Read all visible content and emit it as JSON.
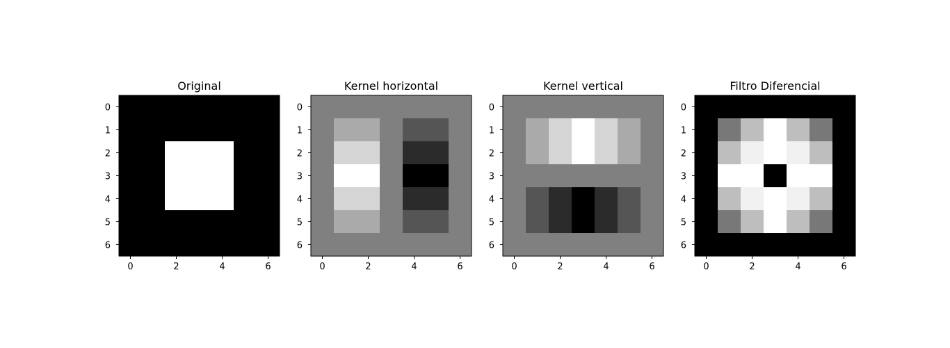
{
  "chart_data": [
    {
      "type": "heatmap",
      "title": "Original",
      "colormap": "gray",
      "x_ticks": [
        "0",
        "2",
        "4",
        "6"
      ],
      "y_ticks": [
        "0",
        "1",
        "2",
        "3",
        "4",
        "5",
        "6"
      ],
      "values": [
        [
          0,
          0,
          0,
          0,
          0,
          0,
          0
        ],
        [
          0,
          0,
          0,
          0,
          0,
          0,
          0
        ],
        [
          0,
          0,
          1,
          1,
          1,
          0,
          0
        ],
        [
          0,
          0,
          1,
          1,
          1,
          0,
          0
        ],
        [
          0,
          0,
          1,
          1,
          1,
          0,
          0
        ],
        [
          0,
          0,
          0,
          0,
          0,
          0,
          0
        ],
        [
          0,
          0,
          0,
          0,
          0,
          0,
          0
        ]
      ]
    },
    {
      "type": "heatmap",
      "title": "Kernel horizontal",
      "colormap": "gray",
      "x_ticks": [
        "0",
        "2",
        "4",
        "6"
      ],
      "y_ticks": [
        "0",
        "1",
        "2",
        "3",
        "4",
        "5",
        "6"
      ],
      "values": [
        [
          0,
          0,
          0,
          0,
          0,
          0,
          0
        ],
        [
          0,
          1,
          1,
          0,
          -1,
          -1,
          0
        ],
        [
          0,
          2,
          2,
          0,
          -2,
          -2,
          0
        ],
        [
          0,
          3,
          3,
          0,
          -3,
          -3,
          0
        ],
        [
          0,
          2,
          2,
          0,
          -2,
          -2,
          0
        ],
        [
          0,
          1,
          1,
          0,
          -1,
          -1,
          0
        ],
        [
          0,
          0,
          0,
          0,
          0,
          0,
          0
        ]
      ]
    },
    {
      "type": "heatmap",
      "title": "Kernel vertical",
      "colormap": "gray",
      "x_ticks": [
        "0",
        "2",
        "4",
        "6"
      ],
      "y_ticks": [
        "0",
        "1",
        "2",
        "3",
        "4",
        "5",
        "6"
      ],
      "values": [
        [
          0,
          0,
          0,
          0,
          0,
          0,
          0
        ],
        [
          0,
          1,
          2,
          3,
          2,
          1,
          0
        ],
        [
          0,
          1,
          2,
          3,
          2,
          1,
          0
        ],
        [
          0,
          0,
          0,
          0,
          0,
          0,
          0
        ],
        [
          0,
          -1,
          -2,
          -3,
          -2,
          -1,
          0
        ],
        [
          0,
          -1,
          -2,
          -3,
          -2,
          -1,
          0
        ],
        [
          0,
          0,
          0,
          0,
          0,
          0,
          0
        ]
      ]
    },
    {
      "type": "heatmap",
      "title": "Filtro Diferencial",
      "colormap": "gray",
      "x_ticks": [
        "0",
        "2",
        "4",
        "6"
      ],
      "y_ticks": [
        "0",
        "1",
        "2",
        "3",
        "4",
        "5",
        "6"
      ],
      "values": [
        [
          0,
          0,
          0,
          0,
          0,
          0,
          0
        ],
        [
          0,
          1.41,
          2.24,
          3,
          2.24,
          1.41,
          0
        ],
        [
          0,
          2.24,
          2.83,
          3,
          2.83,
          2.24,
          0
        ],
        [
          0,
          3,
          3,
          0,
          3,
          3,
          0
        ],
        [
          0,
          2.24,
          2.83,
          3,
          2.83,
          2.24,
          0
        ],
        [
          0,
          1.41,
          2.24,
          3,
          2.24,
          1.41,
          0
        ],
        [
          0,
          0,
          0,
          0,
          0,
          0,
          0
        ]
      ]
    }
  ]
}
